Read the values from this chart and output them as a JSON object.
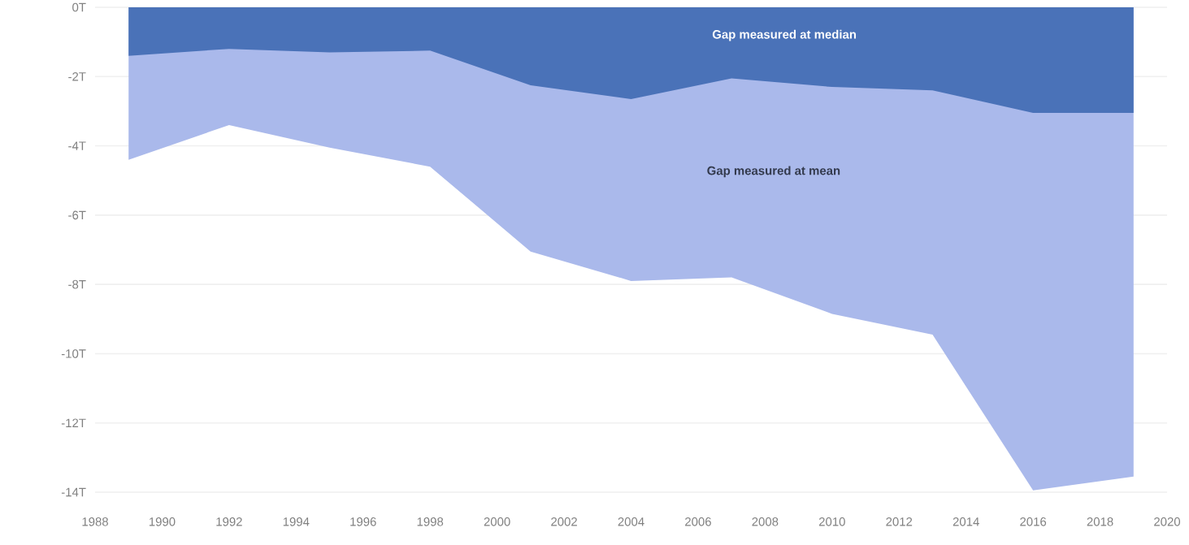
{
  "chart_data": {
    "type": "area",
    "x": [
      1989,
      1992,
      1995,
      1998,
      2001,
      2004,
      2007,
      2010,
      2013,
      2016,
      2019
    ],
    "series": [
      {
        "name": "Gap measured at mean",
        "color": "#aab9eb",
        "values": [
          -4.4,
          -3.4,
          -4.05,
          -4.6,
          -7.05,
          -7.9,
          -7.8,
          -8.85,
          -9.45,
          -13.95,
          -13.55
        ]
      },
      {
        "name": "Gap measured at median",
        "color": "#4a72b8",
        "values": [
          -1.4,
          -1.2,
          -1.3,
          -1.25,
          -2.25,
          -2.65,
          -2.05,
          -2.3,
          -2.4,
          -3.05,
          -3.05
        ]
      }
    ],
    "xlim": [
      1988,
      2020
    ],
    "xticks": [
      1988,
      1990,
      1992,
      1994,
      1996,
      1998,
      2000,
      2002,
      2004,
      2006,
      2008,
      2010,
      2012,
      2014,
      2016,
      2018,
      2020
    ],
    "ylim": [
      -14,
      0
    ],
    "yticks": [
      {
        "value": 0,
        "label": "0T"
      },
      {
        "value": -2,
        "label": "-2T"
      },
      {
        "value": -4,
        "label": "-4T"
      },
      {
        "value": -6,
        "label": "-6T"
      },
      {
        "value": -8,
        "label": "-8T"
      },
      {
        "value": -10,
        "label": "-10T"
      },
      {
        "value": -12,
        "label": "-12T"
      },
      {
        "value": -14,
        "label": "-14T"
      }
    ],
    "grid": "y",
    "legend": false
  }
}
